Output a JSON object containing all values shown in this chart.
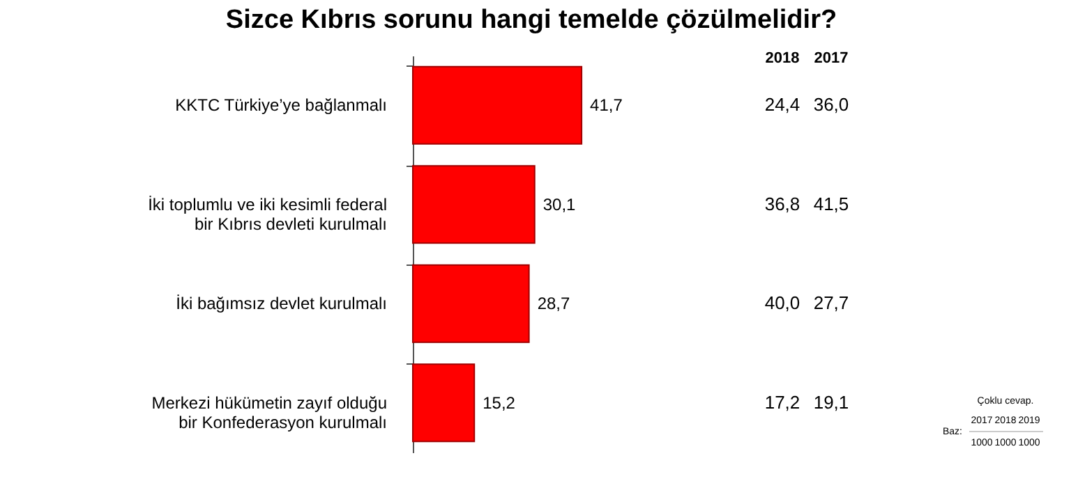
{
  "chart_data": {
    "type": "bar",
    "orientation": "horizontal",
    "title": "Sizce Kıbrıs sorunu hangi temelde çözülmelidir?",
    "categories": [
      "KKTC Türkiye’ye bağlanmalı",
      "İki toplumlu ve iki kesimli federal\nbir Kıbrıs devleti kurulmalı",
      "İki bağımsız devlet kurulmalı",
      "Merkezi hükümetin zayıf olduğu\nbir Konfederasyon kurulmalı"
    ],
    "values": [
      41.7,
      30.1,
      28.7,
      15.2
    ],
    "color": "#ff0000",
    "data_labels": true,
    "value_labels": [
      "41,7",
      "30,1",
      "28,7",
      "15,2"
    ],
    "annotations": [
      "2018",
      "2017",
      "Çoklu cevap.",
      "Baz:",
      "2017",
      "2018",
      "2019",
      "1000",
      "1000",
      "1000",
      "24,4",
      "36,0",
      "36,8",
      "41,5",
      "40,0",
      "27,7",
      "17,2",
      "19,1"
    ]
  }
}
